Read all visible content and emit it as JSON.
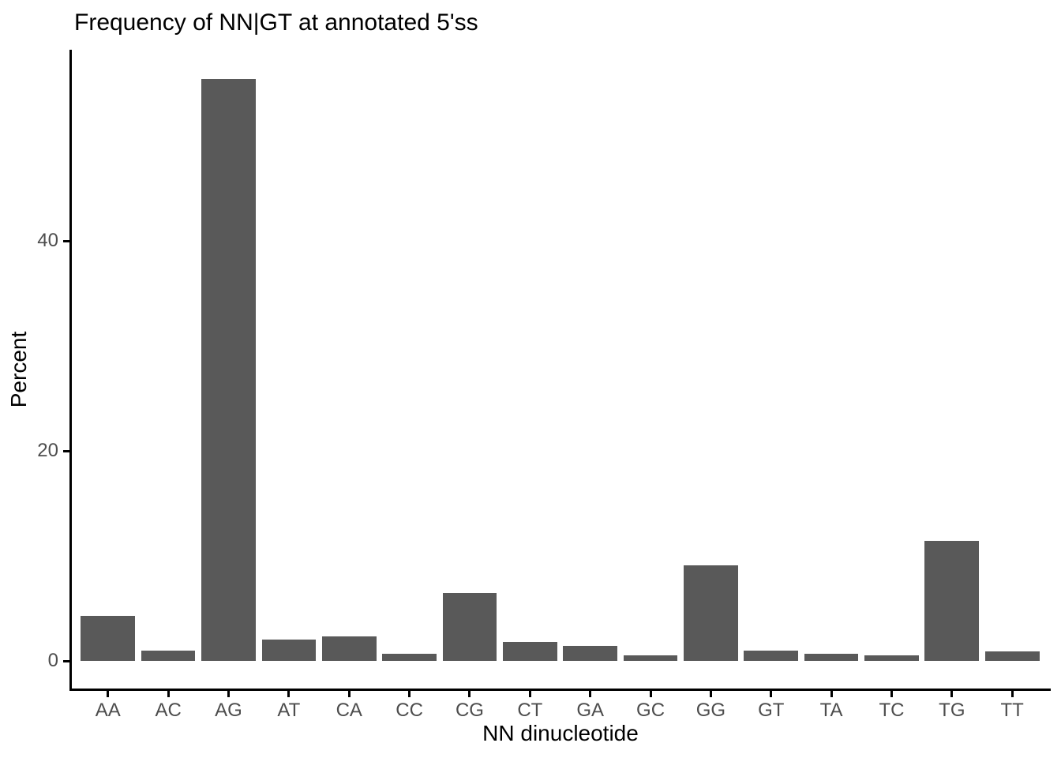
{
  "chart_data": {
    "type": "bar",
    "title": "Frequency of NN|GT at annotated 5'ss",
    "xlabel": "NN dinucleotide",
    "ylabel": "Percent",
    "categories": [
      "AA",
      "AC",
      "AG",
      "AT",
      "CA",
      "CC",
      "CG",
      "CT",
      "GA",
      "GC",
      "GG",
      "GT",
      "TA",
      "TC",
      "TG",
      "TT"
    ],
    "values": [
      4.3,
      1.0,
      55.4,
      2.0,
      2.3,
      0.7,
      6.5,
      1.8,
      1.4,
      0.5,
      9.1,
      1.0,
      0.7,
      0.5,
      11.4,
      0.9
    ],
    "yticks": [
      0,
      20,
      40
    ],
    "ylim": [
      0,
      58.2
    ],
    "grid": false,
    "legend": false,
    "bar_color": "#595959",
    "axis_color": "#000000",
    "tick_label_color": "#4D4D4D",
    "title_color": "#000000"
  }
}
